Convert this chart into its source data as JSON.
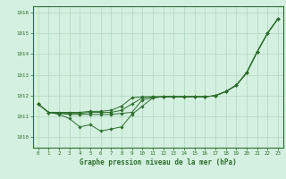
{
  "xlabel": "Graphe pression niveau de la mer (hPa)",
  "ylim": [
    1009.5,
    1016.3
  ],
  "xlim": [
    -0.5,
    23.5
  ],
  "yticks": [
    1010,
    1011,
    1012,
    1013,
    1014,
    1015,
    1016
  ],
  "xticks": [
    0,
    1,
    2,
    3,
    4,
    5,
    6,
    7,
    8,
    9,
    10,
    11,
    12,
    13,
    14,
    15,
    16,
    17,
    18,
    19,
    20,
    21,
    22,
    23
  ],
  "background_color": "#d4f0e0",
  "grid_color": "#b0d8c0",
  "line_color": "#2d6e2d",
  "line1": [
    1011.6,
    1011.2,
    1011.1,
    1010.9,
    1010.5,
    1010.6,
    1010.3,
    1010.4,
    1010.5,
    1011.1,
    1011.5,
    1011.9,
    1011.95,
    1011.95,
    1011.95,
    1011.95,
    1011.95,
    1012.0,
    1012.2,
    1012.5,
    1013.1,
    1014.1,
    1015.0,
    1015.7
  ],
  "line2": [
    1011.6,
    1011.2,
    1011.15,
    1011.1,
    1011.1,
    1011.1,
    1011.1,
    1011.1,
    1011.15,
    1011.2,
    1011.8,
    1011.9,
    1011.95,
    1011.95,
    1011.95,
    1011.95,
    1011.95,
    1012.0,
    1012.2,
    1012.5,
    1013.1,
    1014.1,
    1015.0,
    1015.7
  ],
  "line3": [
    1011.6,
    1011.2,
    1011.15,
    1011.15,
    1011.15,
    1011.2,
    1011.2,
    1011.2,
    1011.3,
    1011.6,
    1011.9,
    1011.95,
    1011.95,
    1011.95,
    1011.95,
    1011.95,
    1011.95,
    1012.0,
    1012.2,
    1012.5,
    1013.1,
    1014.1,
    1015.0,
    1015.7
  ],
  "line4": [
    1011.6,
    1011.2,
    1011.2,
    1011.2,
    1011.2,
    1011.25,
    1011.25,
    1011.3,
    1011.5,
    1011.9,
    1011.95,
    1011.95,
    1011.95,
    1011.95,
    1011.95,
    1011.95,
    1011.95,
    1012.0,
    1012.2,
    1012.5,
    1013.1,
    1014.1,
    1015.0,
    1015.7
  ]
}
